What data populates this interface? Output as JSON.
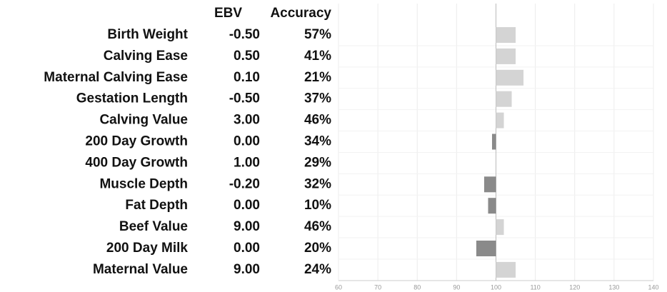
{
  "chart_data": {
    "type": "hbar",
    "columns": [
      "EBV",
      "Accuracy"
    ],
    "categories": [
      "Birth Weight",
      "Calving Ease",
      "Maternal Calving Ease",
      "Gestation Length",
      "Calving Value",
      "200 Day Growth",
      "400 Day Growth",
      "Muscle Depth",
      "Fat Depth",
      "Beef Value",
      "200 Day Milk",
      "Maternal Value"
    ],
    "ebv": [
      "-0.50",
      "0.50",
      "0.10",
      "-0.50",
      "3.00",
      "0.00",
      "1.00",
      "-0.20",
      "0.00",
      "9.00",
      "0.00",
      "9.00"
    ],
    "accuracy": [
      "57%",
      "41%",
      "21%",
      "37%",
      "46%",
      "34%",
      "29%",
      "32%",
      "10%",
      "46%",
      "20%",
      "24%"
    ],
    "values": [
      105,
      105,
      107,
      104,
      102,
      99,
      100,
      97,
      98,
      102,
      95,
      105
    ],
    "baseline": 100,
    "positive_color": "#d4d4d4",
    "negative_color": "#8a8a8a",
    "xlim": [
      60,
      140
    ],
    "xticks": [
      60,
      70,
      80,
      90,
      100,
      110,
      120,
      130,
      140
    ],
    "grid": true
  }
}
